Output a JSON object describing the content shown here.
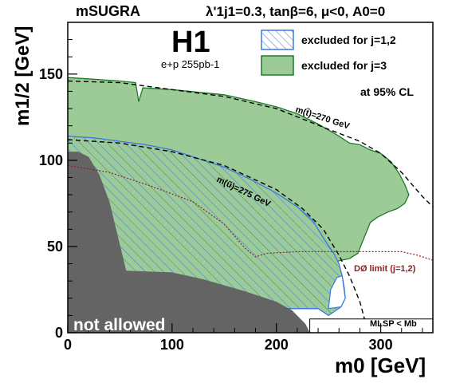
{
  "chart_data": {
    "type": "area",
    "header_left": "mSUGRA",
    "header_right": "λ'1j1=0.3, tanβ=6, μ<0, A0=0",
    "experiment": "H1",
    "lumi": "e+p 255pb-1",
    "confidence": "at 95% CL",
    "xlabel": "m0 [GeV]",
    "ylabel": "m1/2 [GeV]",
    "xlim": [
      0,
      350
    ],
    "ylim": [
      0,
      180
    ],
    "xticks": [
      0,
      100,
      200,
      300
    ],
    "yticks": [
      0,
      50,
      100,
      150
    ],
    "colors": {
      "excluded_j3": "#9ccb98",
      "excluded_j3_edge": "#1f7a2a",
      "excluded_j12": "#3a78e0",
      "not_allowed": "#646464",
      "d0_limit": "#8b2222"
    },
    "legend": {
      "position": "top-right",
      "entries": [
        {
          "label": "excluded for j=1,2",
          "style": "hatched-blue"
        },
        {
          "label": "excluded for j=3",
          "style": "filled-green"
        }
      ]
    },
    "annotations": {
      "not_allowed": "not allowed",
      "stop_contour": "m(t̃)=270 GeV",
      "sup_contour": "m(ũ)=275 GeV",
      "d0_limit": "DØ limit (j=1,2)",
      "lsp_label": "MLSP < Mb"
    },
    "series": [
      {
        "name": "excluded for j=3",
        "points": [
          [
            0,
            148
          ],
          [
            25,
            147
          ],
          [
            50,
            146
          ],
          [
            65,
            145
          ],
          [
            68,
            134
          ],
          [
            72,
            142
          ],
          [
            100,
            141
          ],
          [
            150,
            138
          ],
          [
            180,
            134
          ],
          [
            200,
            131
          ],
          [
            220,
            127
          ],
          [
            240,
            121
          ],
          [
            260,
            114
          ],
          [
            270,
            110
          ],
          [
            280,
            109
          ],
          [
            290,
            106
          ],
          [
            300,
            104
          ],
          [
            310,
            99
          ],
          [
            318,
            92
          ],
          [
            323,
            86
          ],
          [
            327,
            80
          ],
          [
            323,
            75
          ],
          [
            316,
            72
          ],
          [
            307,
            70
          ],
          [
            297,
            67
          ],
          [
            290,
            64
          ],
          [
            286,
            58
          ],
          [
            282,
            52
          ],
          [
            278,
            46
          ],
          [
            270,
            43
          ],
          [
            262,
            42
          ],
          [
            255,
            41
          ],
          [
            250,
            40
          ],
          [
            248,
            35
          ],
          [
            245,
            28
          ],
          [
            242,
            20
          ],
          [
            240,
            14
          ],
          [
            60,
            14
          ],
          [
            55,
            36
          ],
          [
            0,
            108
          ]
        ]
      },
      {
        "name": "excluded for j=1,2",
        "points": [
          [
            0,
            114
          ],
          [
            25,
            113
          ],
          [
            50,
            111
          ],
          [
            75,
            109
          ],
          [
            100,
            106
          ],
          [
            125,
            101
          ],
          [
            150,
            96
          ],
          [
            175,
            89
          ],
          [
            200,
            81
          ],
          [
            220,
            73
          ],
          [
            235,
            65
          ],
          [
            245,
            55
          ],
          [
            255,
            46
          ],
          [
            260,
            40
          ],
          [
            263,
            33
          ],
          [
            265,
            26
          ],
          [
            266,
            20
          ],
          [
            262,
            15
          ],
          [
            250,
            10
          ],
          [
            240,
            14
          ],
          [
            60,
            14
          ],
          [
            55,
            36
          ],
          [
            0,
            105
          ]
        ]
      },
      {
        "name": "not allowed",
        "points": [
          [
            0,
            0
          ],
          [
            232,
            0
          ],
          [
            228,
            5
          ],
          [
            215,
            13
          ],
          [
            200,
            18
          ],
          [
            170,
            24
          ],
          [
            130,
            31
          ],
          [
            100,
            35
          ],
          [
            56,
            36
          ],
          [
            48,
            56
          ],
          [
            40,
            76
          ],
          [
            30,
            92
          ],
          [
            20,
            102
          ],
          [
            10,
            105
          ],
          [
            0,
            105
          ]
        ]
      },
      {
        "name": "m(t̃)=270 GeV",
        "style": "dashed",
        "points": [
          [
            0,
            146
          ],
          [
            50,
            145
          ],
          [
            100,
            141
          ],
          [
            150,
            137
          ],
          [
            200,
            130
          ],
          [
            250,
            118
          ],
          [
            280,
            111
          ],
          [
            300,
            104
          ],
          [
            320,
            93
          ],
          [
            340,
            79
          ],
          [
            350,
            73
          ]
        ]
      },
      {
        "name": "m(ũ)=275 GeV",
        "style": "dashed",
        "points": [
          [
            0,
            112
          ],
          [
            50,
            110
          ],
          [
            100,
            105
          ],
          [
            150,
            97
          ],
          [
            200,
            83
          ],
          [
            225,
            72
          ],
          [
            245,
            60
          ],
          [
            260,
            45
          ],
          [
            270,
            33
          ],
          [
            280,
            18
          ],
          [
            288,
            0
          ]
        ]
      },
      {
        "name": "DØ limit (j=1,2)",
        "style": "dotted",
        "points": [
          [
            0,
            97
          ],
          [
            40,
            93
          ],
          [
            80,
            85
          ],
          [
            120,
            76
          ],
          [
            150,
            63
          ],
          [
            170,
            49
          ],
          [
            180,
            44
          ],
          [
            190,
            46
          ],
          [
            220,
            47
          ],
          [
            260,
            47
          ],
          [
            300,
            47
          ],
          [
            320,
            47
          ],
          [
            335,
            45
          ],
          [
            350,
            42
          ]
        ]
      },
      {
        "name": "MLSP < Mb",
        "style": "box",
        "points": [
          [
            232,
            0
          ],
          [
            350,
            0
          ],
          [
            350,
            8
          ],
          [
            232,
            8
          ]
        ]
      }
    ]
  }
}
